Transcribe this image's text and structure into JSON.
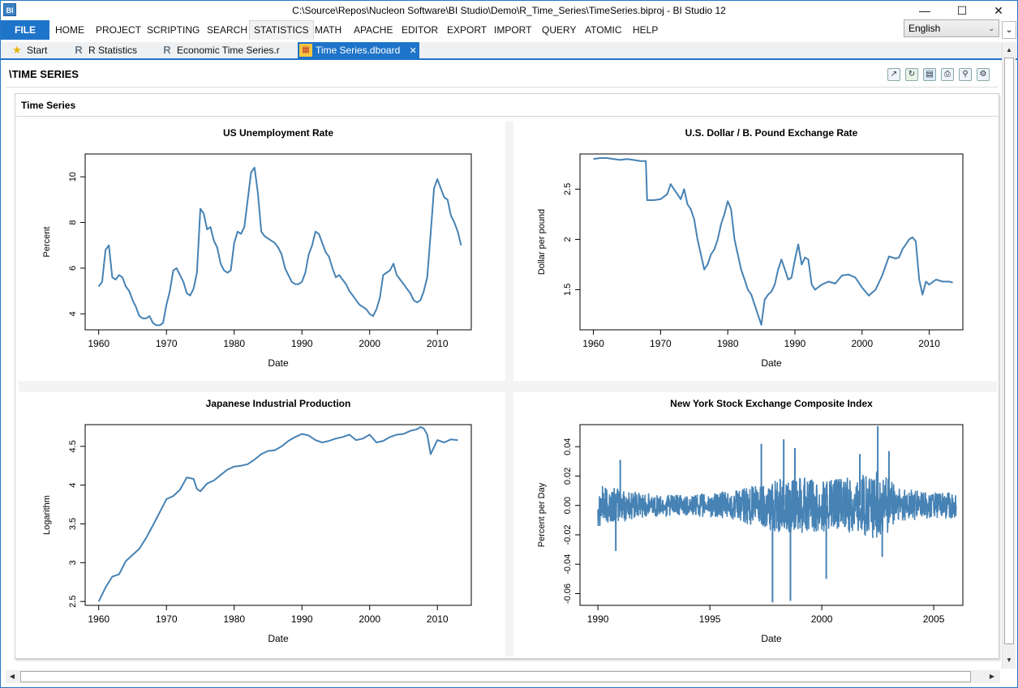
{
  "window": {
    "title": "C:\\Source\\Repos\\Nucleon Software\\BI Studio\\Demo\\R_Time_Series\\TimeSeries.biproj - BI Studio 12",
    "icon_label": "BI"
  },
  "menu": {
    "file": "FILE",
    "items": [
      "HOME",
      "PROJECT",
      "SCRIPTING",
      "SEARCH",
      "STATISTICS",
      "MATH",
      "APACHE",
      "EDITOR",
      "EXPORT",
      "IMPORT",
      "QUERY",
      "ATOMIC",
      "HELP"
    ],
    "active": "STATISTICS",
    "language": "English"
  },
  "tabs": [
    {
      "label": "Start",
      "icon": "star-icon"
    },
    {
      "label": "R Statistics",
      "icon": "r-logo-icon"
    },
    {
      "label": "Economic Time Series.r",
      "icon": "r-logo-icon"
    },
    {
      "label": "Time Series.dboard",
      "icon": "dashboard-icon",
      "active": true
    }
  ],
  "page": {
    "title": "\\TIME SERIES",
    "panel_title": "Time Series"
  },
  "toolbar": {
    "icons": [
      "chart-icon",
      "refresh-icon",
      "save-icon",
      "print-icon",
      "print-preview-icon",
      "settings-icon"
    ]
  },
  "colors": {
    "accent": "#1e74c9",
    "series": "#4682b4"
  },
  "chart_data": [
    {
      "type": "line",
      "title": "US Unemployment Rate",
      "xlabel": "Date",
      "ylabel": "Percent",
      "xlim": [
        1958,
        2015
      ],
      "ylim": [
        3.3,
        11.0
      ],
      "xticks": [
        1960,
        1970,
        1980,
        1990,
        2000,
        2010
      ],
      "yticks": [
        4,
        6,
        8,
        10
      ],
      "x": [
        1960,
        1960.5,
        1961,
        1961.5,
        1962,
        1962.5,
        1963,
        1963.5,
        1964,
        1964.5,
        1965,
        1965.5,
        1966,
        1966.5,
        1967,
        1967.5,
        1968,
        1968.5,
        1969,
        1969.5,
        1970,
        1970.5,
        1971,
        1971.5,
        1972,
        1972.5,
        1973,
        1973.5,
        1974,
        1974.5,
        1975,
        1975.5,
        1976,
        1976.5,
        1977,
        1977.5,
        1978,
        1978.5,
        1979,
        1979.5,
        1980,
        1980.5,
        1981,
        1981.5,
        1982,
        1982.5,
        1983,
        1983.5,
        1984,
        1984.5,
        1985,
        1985.5,
        1986,
        1986.5,
        1987,
        1987.5,
        1988,
        1988.5,
        1989,
        1989.5,
        1990,
        1990.5,
        1991,
        1991.5,
        1992,
        1992.5,
        1993,
        1993.5,
        1994,
        1994.5,
        1995,
        1995.5,
        1996,
        1996.5,
        1997,
        1997.5,
        1998,
        1998.5,
        1999,
        1999.5,
        2000,
        2000.5,
        2001,
        2001.5,
        2002,
        2002.5,
        2003,
        2003.5,
        2004,
        2004.5,
        2005,
        2005.5,
        2006,
        2006.5,
        2007,
        2007.5,
        2008,
        2008.5,
        2009,
        2009.5,
        2010,
        2010.5,
        2011,
        2011.5,
        2012,
        2012.5,
        2013,
        2013.5
      ],
      "values": [
        5.2,
        5.4,
        6.8,
        7.0,
        5.6,
        5.5,
        5.7,
        5.6,
        5.2,
        5.0,
        4.6,
        4.3,
        3.9,
        3.8,
        3.8,
        3.9,
        3.6,
        3.5,
        3.5,
        3.6,
        4.4,
        5.0,
        5.9,
        6.0,
        5.7,
        5.4,
        4.9,
        4.8,
        5.1,
        5.8,
        8.6,
        8.4,
        7.7,
        7.8,
        7.2,
        6.9,
        6.2,
        5.9,
        5.8,
        5.9,
        7.1,
        7.6,
        7.5,
        7.8,
        9.0,
        10.2,
        10.4,
        9.3,
        7.6,
        7.4,
        7.3,
        7.2,
        7.1,
        6.9,
        6.6,
        6.0,
        5.7,
        5.4,
        5.3,
        5.3,
        5.4,
        5.8,
        6.6,
        7.0,
        7.6,
        7.5,
        7.1,
        6.7,
        6.5,
        6.0,
        5.6,
        5.7,
        5.5,
        5.3,
        5.0,
        4.8,
        4.6,
        4.4,
        4.3,
        4.2,
        4.0,
        3.9,
        4.2,
        4.7,
        5.7,
        5.8,
        5.9,
        6.2,
        5.7,
        5.5,
        5.3,
        5.1,
        4.9,
        4.6,
        4.5,
        4.6,
        5.0,
        5.6,
        7.5,
        9.5,
        9.9,
        9.5,
        9.1,
        9.0,
        8.3,
        8.0,
        7.6,
        7.0
      ]
    },
    {
      "type": "line",
      "title": "U.S. Dollar / B. Pound Exchange Rate",
      "xlabel": "Date",
      "ylabel": "Dollar per pound",
      "xlim": [
        1958,
        2015
      ],
      "ylim": [
        1.1,
        2.85
      ],
      "xticks": [
        1960,
        1970,
        1980,
        1990,
        2000,
        2010
      ],
      "yticks": [
        1.5,
        2.0,
        2.5
      ],
      "x": [
        1960,
        1961,
        1962,
        1963,
        1964,
        1965,
        1966,
        1967,
        1967.8,
        1968,
        1969,
        1970,
        1971,
        1971.5,
        1972,
        1972.5,
        1973,
        1973.5,
        1974,
        1974.5,
        1975,
        1975.5,
        1976,
        1976.5,
        1977,
        1977.5,
        1978,
        1978.5,
        1979,
        1979.5,
        1980,
        1980.5,
        1981,
        1981.5,
        1982,
        1982.5,
        1983,
        1983.5,
        1984,
        1984.5,
        1985,
        1985.5,
        1986,
        1986.5,
        1987,
        1987.5,
        1988,
        1988.5,
        1989,
        1989.5,
        1990,
        1990.5,
        1991,
        1991.5,
        1992,
        1992.5,
        1993,
        1994,
        1995,
        1996,
        1997,
        1998,
        1999,
        2000,
        2001,
        2002,
        2003,
        2004,
        2005,
        2005.5,
        2006,
        2007,
        2007.5,
        2008,
        2008.5,
        2009,
        2009.5,
        2010,
        2011,
        2012,
        2013,
        2013.5
      ],
      "values": [
        2.8,
        2.81,
        2.81,
        2.8,
        2.79,
        2.8,
        2.79,
        2.78,
        2.78,
        2.39,
        2.39,
        2.4,
        2.45,
        2.55,
        2.5,
        2.45,
        2.4,
        2.5,
        2.35,
        2.3,
        2.2,
        2.0,
        1.85,
        1.7,
        1.75,
        1.85,
        1.9,
        2.0,
        2.15,
        2.25,
        2.38,
        2.3,
        2.0,
        1.85,
        1.7,
        1.6,
        1.5,
        1.45,
        1.35,
        1.25,
        1.15,
        1.4,
        1.45,
        1.48,
        1.55,
        1.7,
        1.8,
        1.7,
        1.6,
        1.62,
        1.8,
        1.95,
        1.75,
        1.82,
        1.8,
        1.55,
        1.5,
        1.55,
        1.58,
        1.56,
        1.64,
        1.65,
        1.62,
        1.52,
        1.44,
        1.5,
        1.64,
        1.83,
        1.81,
        1.82,
        1.9,
        2.0,
        2.02,
        1.98,
        1.6,
        1.45,
        1.58,
        1.55,
        1.6,
        1.58,
        1.58,
        1.57
      ]
    },
    {
      "type": "line",
      "title": "Japanese Industrial Production",
      "xlabel": "Date",
      "ylabel": "Logarithm",
      "xlim": [
        1958,
        2015
      ],
      "ylim": [
        2.45,
        4.78
      ],
      "xticks": [
        1960,
        1970,
        1980,
        1990,
        2000,
        2010
      ],
      "yticks": [
        2.5,
        3.0,
        3.5,
        4.0,
        4.5
      ],
      "x": [
        1960,
        1961,
        1962,
        1963,
        1964,
        1965,
        1966,
        1967,
        1968,
        1969,
        1970,
        1971,
        1972,
        1973,
        1974,
        1974.5,
        1975,
        1976,
        1977,
        1978,
        1979,
        1980,
        1981,
        1982,
        1983,
        1984,
        1985,
        1986,
        1987,
        1988,
        1989,
        1990,
        1991,
        1992,
        1993,
        1994,
        1995,
        1996,
        1997,
        1998,
        1999,
        2000,
        2001,
        2002,
        2003,
        2004,
        2005,
        2006,
        2007,
        2007.5,
        2008,
        2008.5,
        2009,
        2010,
        2011,
        2012,
        2013
      ],
      "values": [
        2.5,
        2.68,
        2.82,
        2.85,
        3.02,
        3.1,
        3.18,
        3.32,
        3.48,
        3.65,
        3.82,
        3.86,
        3.94,
        4.1,
        4.08,
        3.95,
        3.92,
        4.02,
        4.06,
        4.13,
        4.2,
        4.24,
        4.25,
        4.27,
        4.33,
        4.4,
        4.44,
        4.45,
        4.5,
        4.57,
        4.62,
        4.66,
        4.64,
        4.58,
        4.55,
        4.57,
        4.6,
        4.62,
        4.65,
        4.58,
        4.6,
        4.65,
        4.55,
        4.57,
        4.62,
        4.65,
        4.66,
        4.7,
        4.72,
        4.75,
        4.73,
        4.65,
        4.4,
        4.58,
        4.55,
        4.59,
        4.58
      ]
    },
    {
      "type": "line",
      "title": "New York Stock Exchange Composite Index",
      "xlabel": "Date",
      "ylabel": "Percent per Day",
      "xlim": [
        1989.2,
        2006.3
      ],
      "ylim": [
        -0.068,
        0.055
      ],
      "xticks": [
        1990,
        1995,
        2000,
        2005
      ],
      "yticks": [
        -0.06,
        -0.04,
        -0.02,
        0.0,
        0.02,
        0.04
      ],
      "volatility": [
        {
          "x": 1990,
          "amplitude": 0.012
        },
        {
          "x": 1991,
          "amplitude": 0.01
        },
        {
          "x": 1992,
          "amplitude": 0.007
        },
        {
          "x": 1994,
          "amplitude": 0.006
        },
        {
          "x": 1996,
          "amplitude": 0.008
        },
        {
          "x": 1997.5,
          "amplitude": 0.014
        },
        {
          "x": 1998.5,
          "amplitude": 0.016
        },
        {
          "x": 2000,
          "amplitude": 0.015
        },
        {
          "x": 2001.5,
          "amplitude": 0.016
        },
        {
          "x": 2002.5,
          "amplitude": 0.02
        },
        {
          "x": 2003.5,
          "amplitude": 0.01
        },
        {
          "x": 2005,
          "amplitude": 0.007
        },
        {
          "x": 2006,
          "amplitude": 0.008
        }
      ],
      "spikes": [
        {
          "x": 1990.8,
          "value": -0.031
        },
        {
          "x": 1991.0,
          "value": 0.031
        },
        {
          "x": 1997.3,
          "value": 0.042
        },
        {
          "x": 1997.8,
          "value": -0.066
        },
        {
          "x": 1998.3,
          "value": 0.045
        },
        {
          "x": 1998.6,
          "value": -0.065
        },
        {
          "x": 1998.8,
          "value": 0.039
        },
        {
          "x": 2000.2,
          "value": -0.05
        },
        {
          "x": 2001.7,
          "value": 0.035
        },
        {
          "x": 2002.5,
          "value": 0.054
        },
        {
          "x": 2002.7,
          "value": -0.035
        },
        {
          "x": 2003.0,
          "value": 0.037
        }
      ]
    }
  ]
}
